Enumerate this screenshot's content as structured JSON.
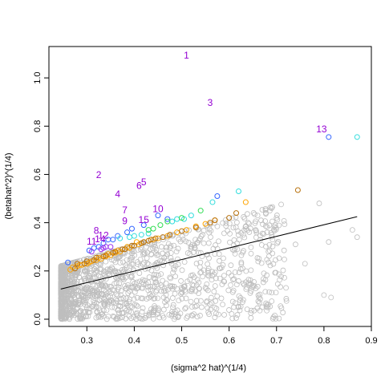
{
  "chart_data": {
    "type": "scatter",
    "title": "",
    "xlabel": "(sigma^2 hat)^(1/4)",
    "ylabel": "(betahat^2)^(1/4)",
    "xlim": [
      0.22,
      0.9
    ],
    "ylim": [
      -0.03,
      1.13
    ],
    "x_ticks": [
      0.3,
      0.4,
      0.5,
      0.6,
      0.7,
      0.8,
      0.9
    ],
    "y_ticks": [
      0.0,
      0.2,
      0.4,
      0.6,
      0.8,
      1.0
    ],
    "grid": false,
    "legend": "none",
    "colors": {
      "background_points": "#bebebe",
      "orange": "#ffa500",
      "dark_orange": "#b8720f",
      "blue": "#3366ff",
      "green": "#33dd55",
      "cyan": "#33dddd",
      "purple": "#9933ee",
      "label": "#9400d3",
      "fit_line": "#000000"
    },
    "regression_line": {
      "x": [
        0.245,
        0.87
      ],
      "y": [
        0.125,
        0.425
      ]
    },
    "labeled_points": [
      {
        "text": "1",
        "x": 0.51,
        "y": 1.09
      },
      {
        "text": "2",
        "x": 0.325,
        "y": 0.595
      },
      {
        "text": "3",
        "x": 0.56,
        "y": 0.895
      },
      {
        "text": "4",
        "x": 0.365,
        "y": 0.515
      },
      {
        "text": "5",
        "x": 0.42,
        "y": 0.565
      },
      {
        "text": "6",
        "x": 0.41,
        "y": 0.55
      },
      {
        "text": "7",
        "x": 0.38,
        "y": 0.45
      },
      {
        "text": "8",
        "x": 0.32,
        "y": 0.365
      },
      {
        "text": "9",
        "x": 0.38,
        "y": 0.405
      },
      {
        "text": "10",
        "x": 0.45,
        "y": 0.455
      },
      {
        "text": "11",
        "x": 0.31,
        "y": 0.32
      },
      {
        "text": "12",
        "x": 0.335,
        "y": 0.345
      },
      {
        "text": "13",
        "x": 0.795,
        "y": 0.785
      },
      {
        "text": "14",
        "x": 0.328,
        "y": 0.33
      },
      {
        "text": "15",
        "x": 0.42,
        "y": 0.41
      }
    ],
    "highlight_series": [
      {
        "color": "#3366ff",
        "x": [
          0.81,
          0.575,
          0.45,
          0.42,
          0.395,
          0.385,
          0.365,
          0.355,
          0.345,
          0.335,
          0.325,
          0.315,
          0.305,
          0.26,
          0.47
        ],
        "y": [
          0.755,
          0.51,
          0.43,
          0.39,
          0.375,
          0.36,
          0.345,
          0.33,
          0.33,
          0.315,
          0.3,
          0.295,
          0.285,
          0.235,
          0.415
        ]
      },
      {
        "color": "#33dddd",
        "x": [
          0.87,
          0.62,
          0.565,
          0.52,
          0.505,
          0.49,
          0.48,
          0.43,
          0.415,
          0.4,
          0.39,
          0.37
        ],
        "y": [
          0.755,
          0.53,
          0.485,
          0.43,
          0.415,
          0.415,
          0.405,
          0.355,
          0.35,
          0.345,
          0.34,
          0.335
        ]
      },
      {
        "color": "#33dd55",
        "x": [
          0.54,
          0.5,
          0.47,
          0.455,
          0.44,
          0.43
        ],
        "y": [
          0.45,
          0.42,
          0.405,
          0.39,
          0.375,
          0.37
        ]
      },
      {
        "color": "#9933ee",
        "x": [
          0.33,
          0.335,
          0.34,
          0.35,
          0.31
        ],
        "y": [
          0.29,
          0.295,
          0.3,
          0.3,
          0.28
        ]
      },
      {
        "color": "#ffa500",
        "x": [
          0.635,
          0.57,
          0.55,
          0.53,
          0.51,
          0.49,
          0.47,
          0.45,
          0.44,
          0.43,
          0.42,
          0.41,
          0.4,
          0.39,
          0.38,
          0.37,
          0.36,
          0.35,
          0.34,
          0.33,
          0.32,
          0.31,
          0.3,
          0.29,
          0.28,
          0.27,
          0.265,
          0.285,
          0.305,
          0.325,
          0.345,
          0.365,
          0.385,
          0.405
        ],
        "y": [
          0.485,
          0.41,
          0.395,
          0.385,
          0.37,
          0.36,
          0.345,
          0.335,
          0.33,
          0.325,
          0.32,
          0.31,
          0.305,
          0.295,
          0.29,
          0.28,
          0.275,
          0.265,
          0.26,
          0.25,
          0.245,
          0.24,
          0.23,
          0.225,
          0.22,
          0.215,
          0.205,
          0.225,
          0.235,
          0.255,
          0.27,
          0.285,
          0.3,
          0.32
        ]
      },
      {
        "color": "#b8720f",
        "x": [
          0.745,
          0.615,
          0.6,
          0.57,
          0.56,
          0.53,
          0.5,
          0.475,
          0.46,
          0.445,
          0.43,
          0.42,
          0.4,
          0.38,
          0.36,
          0.34,
          0.32,
          0.3,
          0.28,
          0.275,
          0.295,
          0.315,
          0.335,
          0.355,
          0.375,
          0.395,
          0.415,
          0.435
        ],
        "y": [
          0.535,
          0.44,
          0.42,
          0.41,
          0.4,
          0.38,
          0.365,
          0.35,
          0.34,
          0.335,
          0.325,
          0.32,
          0.305,
          0.29,
          0.28,
          0.265,
          0.255,
          0.24,
          0.23,
          0.21,
          0.23,
          0.245,
          0.26,
          0.275,
          0.29,
          0.305,
          0.315,
          0.33
        ]
      }
    ],
    "background_cloud": {
      "n": 1400,
      "x_range": [
        0.245,
        0.88
      ],
      "y_range": [
        0.0,
        0.47
      ],
      "sparse_outliers": [
        {
          "x": 0.86,
          "y": 0.37
        },
        {
          "x": 0.87,
          "y": 0.34
        },
        {
          "x": 0.81,
          "y": 0.32
        },
        {
          "x": 0.8,
          "y": 0.1
        },
        {
          "x": 0.815,
          "y": 0.09
        },
        {
          "x": 0.76,
          "y": 0.23
        },
        {
          "x": 0.79,
          "y": 0.48
        },
        {
          "x": 0.74,
          "y": 0.31
        },
        {
          "x": 0.72,
          "y": 0.13
        },
        {
          "x": 0.7,
          "y": 0.42
        },
        {
          "x": 0.67,
          "y": 0.05
        },
        {
          "x": 0.68,
          "y": 0.36
        },
        {
          "x": 0.66,
          "y": 0.43
        },
        {
          "x": 0.69,
          "y": 0.11
        },
        {
          "x": 0.65,
          "y": 0.14
        },
        {
          "x": 0.61,
          "y": 0.05
        },
        {
          "x": 0.63,
          "y": 0.08
        }
      ]
    }
  }
}
